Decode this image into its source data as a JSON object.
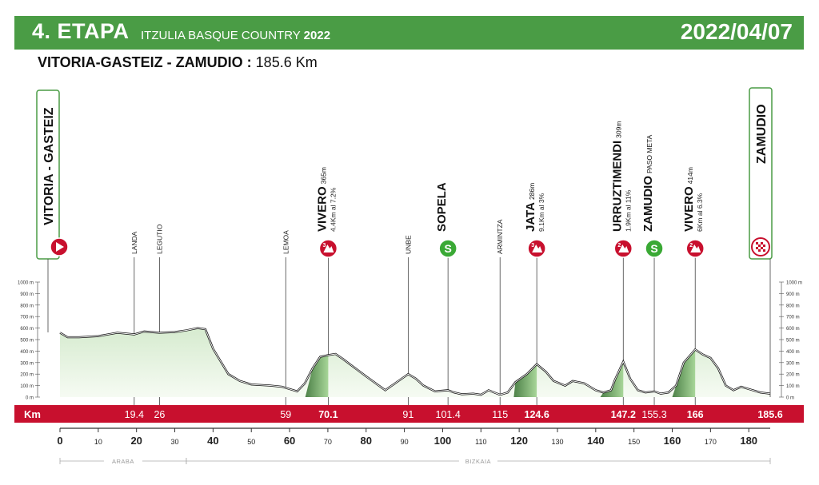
{
  "header": {
    "stage": "4. ETAPA",
    "race": "ITZULIA BASQUE COUNTRY",
    "year": "2022",
    "date": "2022/04/07"
  },
  "route": {
    "name": "VITORIA-GASTEIZ - ZAMUDIO :",
    "distance": "185.6 Km"
  },
  "colors": {
    "header_green": "#4a9c45",
    "km_bar_red": "#c8102e",
    "profile_fill": "#e6f2e1",
    "climb_dark": "#2f6b2a",
    "climb_light": "#8fc780"
  },
  "chart_data": {
    "type": "area",
    "xlabel": "Km",
    "x_ticks": [
      0,
      10,
      20,
      30,
      40,
      50,
      60,
      70,
      80,
      90,
      100,
      110,
      120,
      130,
      140,
      150,
      160,
      170,
      180
    ],
    "x_tick_labels": [
      "0",
      "10",
      "20",
      "30",
      "40",
      "50",
      "60",
      "70",
      "80",
      "90",
      "100",
      "110",
      "120",
      "130",
      "140",
      "150",
      "160",
      "170",
      "180"
    ],
    "xlim": [
      0,
      185.6
    ],
    "ylim": [
      0,
      1000
    ],
    "y_ticks": [
      0,
      100,
      200,
      300,
      400,
      500,
      600,
      700,
      800,
      900,
      1000
    ],
    "y_tick_labels": [
      "0 m",
      "100 m",
      "200 m",
      "300 m",
      "400 m",
      "500 m",
      "600 m",
      "700 m",
      "800 m",
      "900 m",
      "1000 m"
    ],
    "profile": {
      "x": [
        0,
        2,
        5,
        10,
        15,
        19.4,
        22,
        26,
        30,
        33,
        36,
        38,
        40,
        44,
        47,
        50,
        55,
        58,
        60,
        62,
        64,
        66,
        68,
        70.1,
        72,
        74,
        76,
        80,
        85,
        88,
        91,
        93,
        95,
        98,
        101.4,
        103,
        105,
        108,
        110,
        112,
        115,
        117,
        119,
        122,
        124.6,
        127,
        129,
        132,
        134,
        137,
        140,
        142,
        144,
        145,
        147.2,
        149,
        151,
        153,
        155.3,
        157,
        159,
        161,
        163,
        166,
        168,
        170,
        172,
        174,
        176,
        178,
        180,
        183,
        185.6
      ],
      "y": [
        560,
        520,
        520,
        530,
        560,
        545,
        570,
        560,
        565,
        580,
        600,
        590,
        420,
        200,
        140,
        110,
        100,
        90,
        70,
        50,
        120,
        250,
        350,
        365,
        375,
        330,
        280,
        180,
        60,
        130,
        200,
        160,
        100,
        50,
        60,
        40,
        25,
        30,
        20,
        60,
        20,
        40,
        130,
        200,
        286,
        220,
        140,
        100,
        140,
        120,
        60,
        40,
        60,
        150,
        309,
        160,
        60,
        40,
        50,
        30,
        40,
        100,
        300,
        414,
        370,
        340,
        250,
        100,
        60,
        90,
        70,
        40,
        30
      ]
    },
    "km_markers": [
      {
        "km": 19.4,
        "label": "19.4",
        "bold": false
      },
      {
        "km": 26,
        "label": "26",
        "bold": false
      },
      {
        "km": 59,
        "label": "59",
        "bold": false
      },
      {
        "km": 70.1,
        "label": "70.1",
        "bold": true
      },
      {
        "km": 91,
        "label": "91",
        "bold": false
      },
      {
        "km": 101.4,
        "label": "101.4",
        "bold": false
      },
      {
        "km": 115,
        "label": "115",
        "bold": false
      },
      {
        "km": 124.6,
        "label": "124.6",
        "bold": true
      },
      {
        "km": 147.2,
        "label": "147.2",
        "bold": true
      },
      {
        "km": 155.3,
        "label": "155.3",
        "bold": false
      },
      {
        "km": 166,
        "label": "166",
        "bold": true
      },
      {
        "km": 185.6,
        "label": "185.6",
        "bold": true
      }
    ],
    "places": [
      {
        "km": 19.4,
        "name": "LANDA",
        "detail": "",
        "sub": "",
        "icon": "none"
      },
      {
        "km": 26,
        "name": "LEGUTIO",
        "detail": "",
        "sub": "",
        "icon": "none"
      },
      {
        "km": 59,
        "name": "LEMOA",
        "detail": "",
        "sub": "",
        "icon": "none"
      },
      {
        "km": 70.1,
        "name": "VIVERO",
        "detail": "365m",
        "sub": "4.4Km al 7.2%",
        "icon": "3"
      },
      {
        "km": 91,
        "name": "UNBE",
        "detail": "",
        "sub": "",
        "icon": "none"
      },
      {
        "km": 101.4,
        "name": "SOPELA",
        "detail": "",
        "sub": "",
        "icon": "S"
      },
      {
        "km": 115,
        "name": "ARMINTZA",
        "detail": "",
        "sub": "",
        "icon": "none"
      },
      {
        "km": 124.6,
        "name": "JATA",
        "detail": "286m",
        "sub": "9.1Km al 3%",
        "icon": "3"
      },
      {
        "km": 147.2,
        "name": "URRUZTIMENDI",
        "detail": "309m",
        "sub": "1.9Km al 11%",
        "icon": "2"
      },
      {
        "km": 155.3,
        "name": "ZAMUDIO",
        "detail": "PASO META",
        "sub": "",
        "icon": "S"
      },
      {
        "km": 166,
        "name": "VIVERO",
        "detail": "414m",
        "sub": "6Km al 6.3%",
        "icon": "2"
      }
    ],
    "start": {
      "name": "VITORIA - GASTEIZ"
    },
    "finish": {
      "name": "ZAMUDIO"
    },
    "regions": [
      {
        "name": "ARABA",
        "from": 0,
        "to": 33
      },
      {
        "name": "BIZKAIA",
        "from": 33,
        "to": 185.6
      }
    ]
  }
}
